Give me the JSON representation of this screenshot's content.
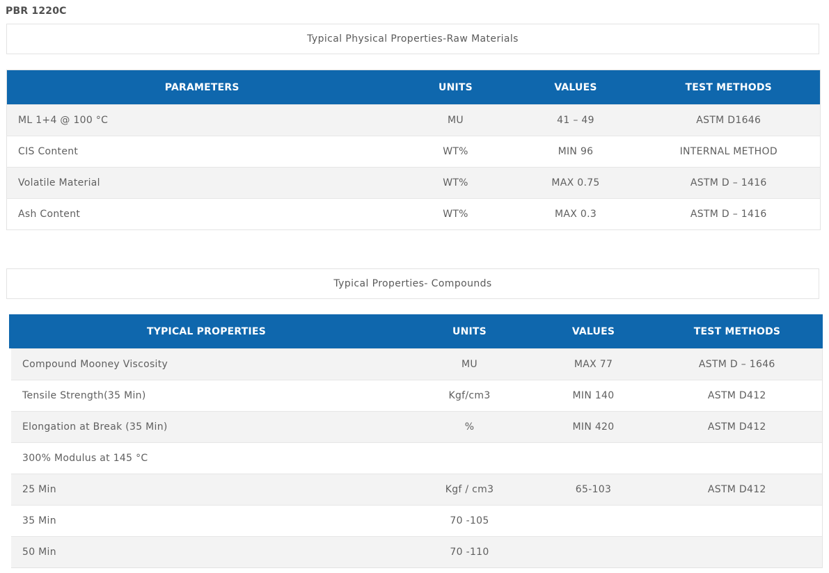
{
  "title": "PBR 1220C",
  "section1": {
    "heading": "Typical Physical Properties-Raw Materials",
    "headers": [
      "PARAMETERS",
      "UNITS",
      "VALUES",
      "TEST METHODS"
    ],
    "rows": [
      [
        "ML 1+4 @ 100 °C",
        "MU",
        "41 – 49",
        "ASTM D1646"
      ],
      [
        "CIS Content",
        "WT%",
        "MIN 96",
        "INTERNAL METHOD"
      ],
      [
        "Volatile Material",
        "WT%",
        "MAX 0.75",
        "ASTM D – 1416"
      ],
      [
        "Ash Content",
        "WT%",
        "MAX 0.3",
        "ASTM D – 1416"
      ]
    ]
  },
  "section2": {
    "heading": "Typical Properties- Compounds",
    "headers": [
      "TYPICAL PROPERTIES",
      "UNITS",
      "VALUES",
      "TEST METHODS"
    ],
    "rows": [
      [
        "Compound Mooney Viscosity",
        "MU",
        "MAX 77",
        "ASTM D – 1646"
      ],
      [
        "Tensile Strength(35 Min)",
        "Kgf/cm3",
        "MIN 140",
        "ASTM D412"
      ],
      [
        "Elongation at Break (35 Min)",
        "%",
        "MIN 420",
        "ASTM D412"
      ],
      [
        "300% Modulus at 145 °C",
        "",
        "",
        ""
      ],
      [
        "25 Min",
        "Kgf / cm3",
        "65-103",
        "ASTM D412"
      ],
      [
        "35 Min",
        "70 -105",
        "",
        ""
      ],
      [
        "50 Min",
        "70 -110",
        "",
        ""
      ]
    ]
  }
}
